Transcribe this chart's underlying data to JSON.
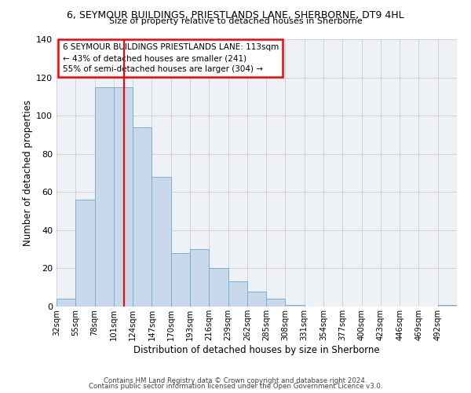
{
  "title": "6, SEYMOUR BUILDINGS, PRIESTLANDS LANE, SHERBORNE, DT9 4HL",
  "subtitle": "Size of property relative to detached houses in Sherborne",
  "xlabel": "Distribution of detached houses by size in Sherborne",
  "ylabel": "Number of detached properties",
  "bar_color": "#c8d9ec",
  "bar_edge_color": "#7aaed4",
  "grid_color": "#cccccc",
  "bg_color": "#eef2f7",
  "categories": [
    "32sqm",
    "55sqm",
    "78sqm",
    "101sqm",
    "124sqm",
    "147sqm",
    "170sqm",
    "193sqm",
    "216sqm",
    "239sqm",
    "262sqm",
    "285sqm",
    "308sqm",
    "331sqm",
    "354sqm",
    "377sqm",
    "400sqm",
    "423sqm",
    "446sqm",
    "469sqm",
    "492sqm"
  ],
  "values": [
    4,
    56,
    115,
    115,
    94,
    68,
    28,
    30,
    20,
    13,
    8,
    4,
    1,
    0,
    0,
    0,
    0,
    0,
    0,
    0,
    1
  ],
  "bin_starts": [
    32,
    55,
    78,
    101,
    124,
    147,
    170,
    193,
    216,
    239,
    262,
    285,
    308,
    331,
    354,
    377,
    400,
    423,
    446,
    469,
    492
  ],
  "bin_width": 23,
  "marker_x": 113,
  "xlim": [
    32,
    515
  ],
  "ylim": [
    0,
    140
  ],
  "yticks": [
    0,
    20,
    40,
    60,
    80,
    100,
    120,
    140
  ],
  "annotation_title": "6 SEYMOUR BUILDINGS PRIESTLANDS LANE: 113sqm",
  "annotation_line1": "← 43% of detached houses are smaller (241)",
  "annotation_line2": "55% of semi-detached houses are larger (304) →",
  "footer1": "Contains HM Land Registry data © Crown copyright and database right 2024.",
  "footer2": "Contains public sector information licensed under the Open Government Licence v3.0."
}
